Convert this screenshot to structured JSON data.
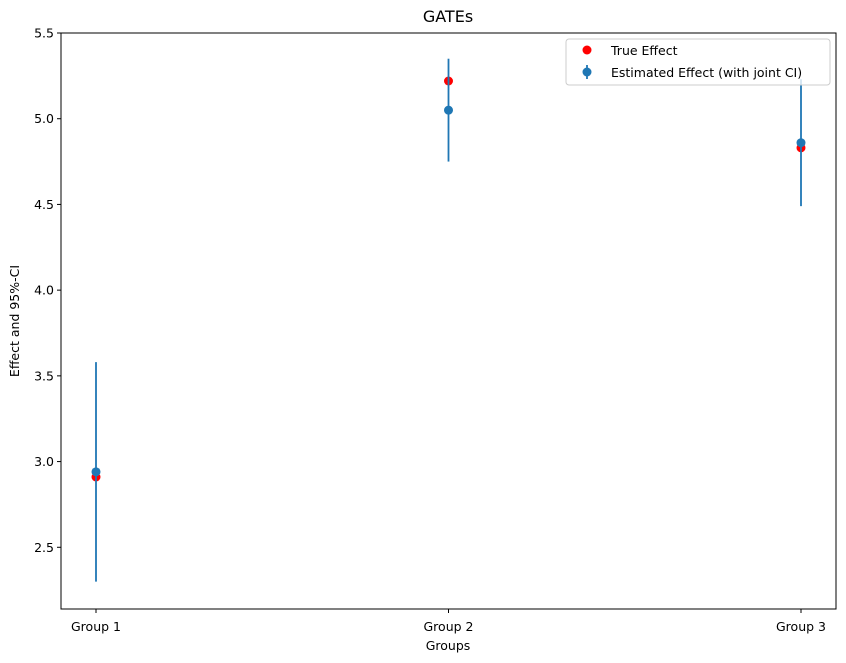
{
  "chart_data": {
    "type": "scatter",
    "title": "GATEs",
    "xlabel": "Groups",
    "ylabel": "Effect and 95%-CI",
    "categories": [
      "Group 1",
      "Group 2",
      "Group 3"
    ],
    "ylim": [
      2.14,
      5.5
    ],
    "yticks": [
      "2.5",
      "3.0",
      "3.5",
      "4.0",
      "4.5",
      "5.0",
      "5.5"
    ],
    "grid": false,
    "legend_position": "top-right",
    "series": [
      {
        "name": "True Effect",
        "kind": "scatter",
        "color": "#ff0000",
        "values": [
          2.91,
          5.22,
          4.83
        ]
      },
      {
        "name": "Estimated Effect (with joint CI)",
        "kind": "errorbar",
        "color": "#1f77b4",
        "values": [
          2.94,
          5.05,
          4.86
        ],
        "ci_lower": [
          2.3,
          4.75,
          4.49
        ],
        "ci_upper": [
          3.58,
          5.35,
          5.23
        ]
      }
    ]
  }
}
